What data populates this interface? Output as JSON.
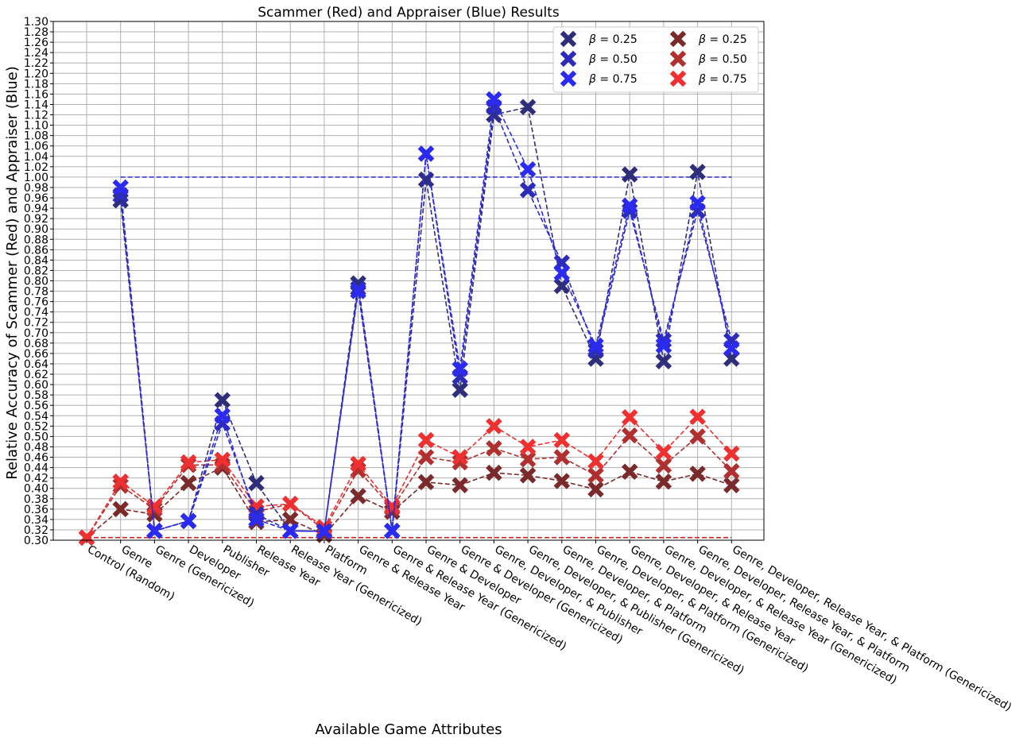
{
  "chart_data": {
    "type": "line",
    "title": "Scammer (Red) and Appraiser (Blue) Results",
    "xlabel": "Available Game Attributes",
    "ylabel": "Relative Accuracy of Scammer (Red) and Appraiser (Blue)",
    "ylim": [
      0.3,
      1.3
    ],
    "ytick_step": 0.02,
    "grid": true,
    "legend_placement": "top-right",
    "beta_symbol": "β",
    "categories": [
      "Control (Random)",
      "Genre",
      "Genre (Genericized)",
      "Developer",
      "Publisher",
      "Release Year",
      "Release Year (Genericized)",
      "Platform",
      "Genre & Release Year",
      "Genre & Release Year (Genericized)",
      "Genre & Developer",
      "Genre & Developer (Genericized)",
      "Genre, Developer, & Publisher",
      "Genre, Developer, & Publisher (Genericized)",
      "Genre, Developer, & Platform",
      "Genre, Developer, & Platform (Genericized)",
      "Genre, Developer, & Release Year",
      "Genre, Developer, & Release Year (Genericized)",
      "Genre, Developer, Release Year, & Platform",
      "Genre, Developer, Release Year, & Platform (Genericized)"
    ],
    "reference_lines": [
      {
        "kind": "appraiser-baseline",
        "value": 1.0,
        "from_index": 1,
        "to_index": 19,
        "color": "#3a3acc"
      },
      {
        "kind": "scammer-baseline",
        "value": 0.305,
        "from_index": 0,
        "to_index": 19,
        "color": "#cc2222"
      }
    ],
    "series": [
      {
        "group": "appraiser",
        "beta": "0.25",
        "color": "#2e2e7a",
        "values": [
          null,
          0.955,
          0.318,
          0.337,
          0.57,
          0.41,
          0.318,
          0.317,
          0.795,
          0.318,
          0.995,
          0.59,
          1.12,
          1.135,
          0.79,
          0.65,
          1.005,
          0.645,
          1.01,
          0.65
        ]
      },
      {
        "group": "appraiser",
        "beta": "0.50",
        "color": "#2c2cb8",
        "values": [
          null,
          0.965,
          0.318,
          0.337,
          0.525,
          0.35,
          0.318,
          0.317,
          0.785,
          0.318,
          1.045,
          0.615,
          1.135,
          0.975,
          0.835,
          0.665,
          0.935,
          0.685,
          0.935,
          0.685
        ]
      },
      {
        "group": "appraiser",
        "beta": "0.75",
        "color": "#2a2af0",
        "values": [
          null,
          0.98,
          0.318,
          0.337,
          0.54,
          0.34,
          0.318,
          0.317,
          0.78,
          0.318,
          1.045,
          0.63,
          1.15,
          1.015,
          0.815,
          0.675,
          0.945,
          0.675,
          0.95,
          0.67
        ]
      },
      {
        "group": "scammer",
        "beta": "0.25",
        "color": "#7a2a2a",
        "values": [
          0.305,
          0.36,
          0.35,
          0.41,
          0.44,
          0.335,
          0.34,
          0.31,
          0.385,
          0.355,
          0.412,
          0.406,
          0.43,
          0.425,
          0.414,
          0.398,
          0.432,
          0.413,
          0.428,
          0.406
        ]
      },
      {
        "group": "scammer",
        "beta": "0.50",
        "color": "#b03030",
        "values": [
          0.305,
          0.405,
          0.36,
          0.445,
          0.445,
          0.355,
          0.37,
          0.32,
          0.435,
          0.362,
          0.46,
          0.45,
          0.477,
          0.456,
          0.46,
          0.425,
          0.502,
          0.444,
          0.5,
          0.433
        ]
      },
      {
        "group": "scammer",
        "beta": "0.75",
        "color": "#ee3030",
        "values": [
          0.305,
          0.413,
          0.365,
          0.45,
          0.455,
          0.365,
          0.37,
          0.325,
          0.447,
          0.365,
          0.493,
          0.46,
          0.52,
          0.48,
          0.493,
          0.452,
          0.537,
          0.47,
          0.538,
          0.467
        ]
      }
    ]
  }
}
